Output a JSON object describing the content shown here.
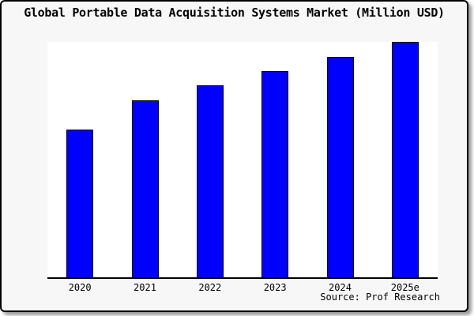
{
  "chart_data": {
    "type": "bar",
    "title": "Global Portable Data Acquisition Systems Market (Million USD)",
    "categories": [
      "2020",
      "2021",
      "2022",
      "2023",
      "2024",
      "2025e"
    ],
    "values": [
      62.9,
      75.1,
      81.4,
      87.7,
      93.7,
      100
    ],
    "values_note": "y-axis has no tick labels; values estimated from bar heights as percent of the tallest (2025e) bar",
    "xlabel": "",
    "ylabel": "",
    "ylim": [
      0,
      100
    ],
    "grid": false,
    "legend": "none",
    "bar_fill_color": "#0000FF",
    "bar_edge_color": "#000000"
  },
  "source": {
    "text": "Source: Prof Research"
  },
  "colors": {
    "figure_background": "#f7f7f7",
    "plot_background": "#ffffff",
    "axis_line": "#000000",
    "frame_border": "#000000",
    "text": "#000000"
  }
}
